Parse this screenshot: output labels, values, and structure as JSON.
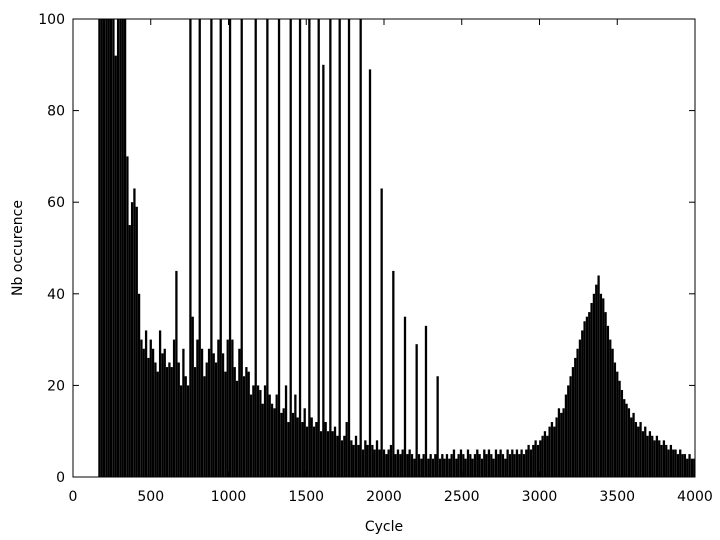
{
  "chart_data": {
    "type": "bar",
    "title": "",
    "xlabel": "Cycle",
    "ylabel": "Nb occurence",
    "xlim": [
      0,
      4000
    ],
    "ylim": [
      0,
      100
    ],
    "xticks": [
      0,
      500,
      1000,
      1500,
      2000,
      2500,
      3000,
      3500,
      4000
    ],
    "yticks": [
      0,
      20,
      40,
      60,
      80,
      100
    ],
    "grid": false,
    "legend": "none",
    "bar_color": "#000000",
    "series": [
      {
        "points": [
          [
            170,
            100
          ],
          [
            185,
            100
          ],
          [
            200,
            100
          ],
          [
            215,
            100
          ],
          [
            230,
            100
          ],
          [
            245,
            100
          ],
          [
            260,
            100
          ],
          [
            275,
            92
          ],
          [
            290,
            100
          ],
          [
            305,
            100
          ],
          [
            320,
            100
          ],
          [
            335,
            100
          ],
          [
            350,
            70
          ],
          [
            365,
            55
          ],
          [
            380,
            60
          ],
          [
            395,
            63
          ],
          [
            410,
            59
          ],
          [
            425,
            40
          ],
          [
            440,
            30
          ],
          [
            455,
            28
          ],
          [
            470,
            32
          ],
          [
            485,
            26
          ],
          [
            500,
            30
          ],
          [
            515,
            28
          ],
          [
            530,
            25
          ],
          [
            545,
            23
          ],
          [
            560,
            32
          ],
          [
            575,
            27
          ],
          [
            590,
            28
          ],
          [
            605,
            24
          ],
          [
            620,
            25
          ],
          [
            635,
            24
          ],
          [
            650,
            30
          ],
          [
            665,
            45
          ],
          [
            680,
            25
          ],
          [
            695,
            20
          ],
          [
            710,
            28
          ],
          [
            725,
            22
          ],
          [
            740,
            20
          ],
          [
            755,
            100
          ],
          [
            770,
            35
          ],
          [
            785,
            24
          ],
          [
            800,
            30
          ],
          [
            815,
            100
          ],
          [
            830,
            28
          ],
          [
            845,
            22
          ],
          [
            860,
            25
          ],
          [
            875,
            28
          ],
          [
            890,
            100
          ],
          [
            905,
            27
          ],
          [
            920,
            25
          ],
          [
            935,
            30
          ],
          [
            950,
            100
          ],
          [
            965,
            27
          ],
          [
            980,
            23
          ],
          [
            995,
            30
          ],
          [
            1010,
            100
          ],
          [
            1025,
            30
          ],
          [
            1040,
            24
          ],
          [
            1055,
            21
          ],
          [
            1070,
            28
          ],
          [
            1085,
            100
          ],
          [
            1100,
            22
          ],
          [
            1115,
            24
          ],
          [
            1130,
            23
          ],
          [
            1145,
            18
          ],
          [
            1160,
            20
          ],
          [
            1175,
            100
          ],
          [
            1190,
            20
          ],
          [
            1205,
            19
          ],
          [
            1220,
            16
          ],
          [
            1235,
            20
          ],
          [
            1250,
            100
          ],
          [
            1265,
            18
          ],
          [
            1280,
            16
          ],
          [
            1295,
            15
          ],
          [
            1310,
            18
          ],
          [
            1325,
            100
          ],
          [
            1340,
            14
          ],
          [
            1355,
            15
          ],
          [
            1370,
            20
          ],
          [
            1385,
            12
          ],
          [
            1400,
            100
          ],
          [
            1415,
            14
          ],
          [
            1430,
            18
          ],
          [
            1445,
            13
          ],
          [
            1460,
            100
          ],
          [
            1475,
            12
          ],
          [
            1490,
            15
          ],
          [
            1505,
            11
          ],
          [
            1520,
            100
          ],
          [
            1535,
            13
          ],
          [
            1550,
            11
          ],
          [
            1565,
            12
          ],
          [
            1580,
            100
          ],
          [
            1595,
            10
          ],
          [
            1610,
            90
          ],
          [
            1625,
            12
          ],
          [
            1640,
            10
          ],
          [
            1655,
            100
          ],
          [
            1670,
            10
          ],
          [
            1685,
            11
          ],
          [
            1700,
            9
          ],
          [
            1715,
            100
          ],
          [
            1730,
            8
          ],
          [
            1745,
            9
          ],
          [
            1760,
            12
          ],
          [
            1775,
            100
          ],
          [
            1790,
            8
          ],
          [
            1805,
            7
          ],
          [
            1820,
            9
          ],
          [
            1835,
            7
          ],
          [
            1850,
            100
          ],
          [
            1865,
            6
          ],
          [
            1880,
            8
          ],
          [
            1895,
            7
          ],
          [
            1910,
            89
          ],
          [
            1925,
            7
          ],
          [
            1940,
            6
          ],
          [
            1955,
            8
          ],
          [
            1970,
            6
          ],
          [
            1985,
            63
          ],
          [
            2000,
            6
          ],
          [
            2015,
            5
          ],
          [
            2030,
            6
          ],
          [
            2045,
            7
          ],
          [
            2060,
            45
          ],
          [
            2075,
            5
          ],
          [
            2090,
            6
          ],
          [
            2105,
            5
          ],
          [
            2120,
            6
          ],
          [
            2135,
            35
          ],
          [
            2150,
            5
          ],
          [
            2165,
            6
          ],
          [
            2180,
            5
          ],
          [
            2195,
            4
          ],
          [
            2210,
            29
          ],
          [
            2225,
            5
          ],
          [
            2240,
            4
          ],
          [
            2255,
            5
          ],
          [
            2270,
            33
          ],
          [
            2285,
            4
          ],
          [
            2300,
            5
          ],
          [
            2315,
            4
          ],
          [
            2330,
            5
          ],
          [
            2345,
            22
          ],
          [
            2360,
            4
          ],
          [
            2375,
            5
          ],
          [
            2390,
            4
          ],
          [
            2405,
            5
          ],
          [
            2420,
            4
          ],
          [
            2435,
            5
          ],
          [
            2450,
            6
          ],
          [
            2465,
            4
          ],
          [
            2480,
            5
          ],
          [
            2495,
            6
          ],
          [
            2510,
            5
          ],
          [
            2525,
            4
          ],
          [
            2540,
            6
          ],
          [
            2555,
            5
          ],
          [
            2570,
            4
          ],
          [
            2585,
            5
          ],
          [
            2600,
            6
          ],
          [
            2615,
            5
          ],
          [
            2630,
            4
          ],
          [
            2645,
            6
          ],
          [
            2660,
            5
          ],
          [
            2675,
            6
          ],
          [
            2690,
            5
          ],
          [
            2705,
            4
          ],
          [
            2720,
            6
          ],
          [
            2735,
            5
          ],
          [
            2750,
            6
          ],
          [
            2765,
            5
          ],
          [
            2780,
            4
          ],
          [
            2795,
            6
          ],
          [
            2810,
            5
          ],
          [
            2825,
            6
          ],
          [
            2840,
            5
          ],
          [
            2855,
            6
          ],
          [
            2870,
            5
          ],
          [
            2885,
            6
          ],
          [
            2900,
            5
          ],
          [
            2915,
            6
          ],
          [
            2930,
            7
          ],
          [
            2945,
            6
          ],
          [
            2960,
            7
          ],
          [
            2975,
            8
          ],
          [
            2990,
            7
          ],
          [
            3005,
            8
          ],
          [
            3020,
            9
          ],
          [
            3035,
            10
          ],
          [
            3050,
            9
          ],
          [
            3065,
            11
          ],
          [
            3080,
            12
          ],
          [
            3095,
            11
          ],
          [
            3110,
            13
          ],
          [
            3125,
            15
          ],
          [
            3140,
            14
          ],
          [
            3155,
            15
          ],
          [
            3170,
            18
          ],
          [
            3185,
            20
          ],
          [
            3200,
            22
          ],
          [
            3215,
            24
          ],
          [
            3230,
            26
          ],
          [
            3245,
            28
          ],
          [
            3260,
            30
          ],
          [
            3275,
            32
          ],
          [
            3290,
            34
          ],
          [
            3305,
            35
          ],
          [
            3320,
            36
          ],
          [
            3335,
            38
          ],
          [
            3350,
            40
          ],
          [
            3365,
            42
          ],
          [
            3380,
            44
          ],
          [
            3395,
            40
          ],
          [
            3410,
            39
          ],
          [
            3425,
            36
          ],
          [
            3440,
            33
          ],
          [
            3455,
            30
          ],
          [
            3470,
            28
          ],
          [
            3485,
            25
          ],
          [
            3500,
            23
          ],
          [
            3515,
            21
          ],
          [
            3530,
            19
          ],
          [
            3545,
            17
          ],
          [
            3560,
            16
          ],
          [
            3575,
            15
          ],
          [
            3590,
            13
          ],
          [
            3605,
            14
          ],
          [
            3620,
            12
          ],
          [
            3635,
            11
          ],
          [
            3650,
            12
          ],
          [
            3665,
            10
          ],
          [
            3680,
            11
          ],
          [
            3695,
            9
          ],
          [
            3710,
            10
          ],
          [
            3725,
            9
          ],
          [
            3740,
            8
          ],
          [
            3755,
            9
          ],
          [
            3770,
            8
          ],
          [
            3785,
            7
          ],
          [
            3800,
            8
          ],
          [
            3815,
            7
          ],
          [
            3830,
            6
          ],
          [
            3845,
            7
          ],
          [
            3860,
            6
          ],
          [
            3875,
            6
          ],
          [
            3890,
            5
          ],
          [
            3905,
            6
          ],
          [
            3920,
            5
          ],
          [
            3935,
            5
          ],
          [
            3950,
            4
          ],
          [
            3965,
            5
          ],
          [
            3980,
            4
          ],
          [
            3995,
            4
          ]
        ]
      }
    ]
  }
}
